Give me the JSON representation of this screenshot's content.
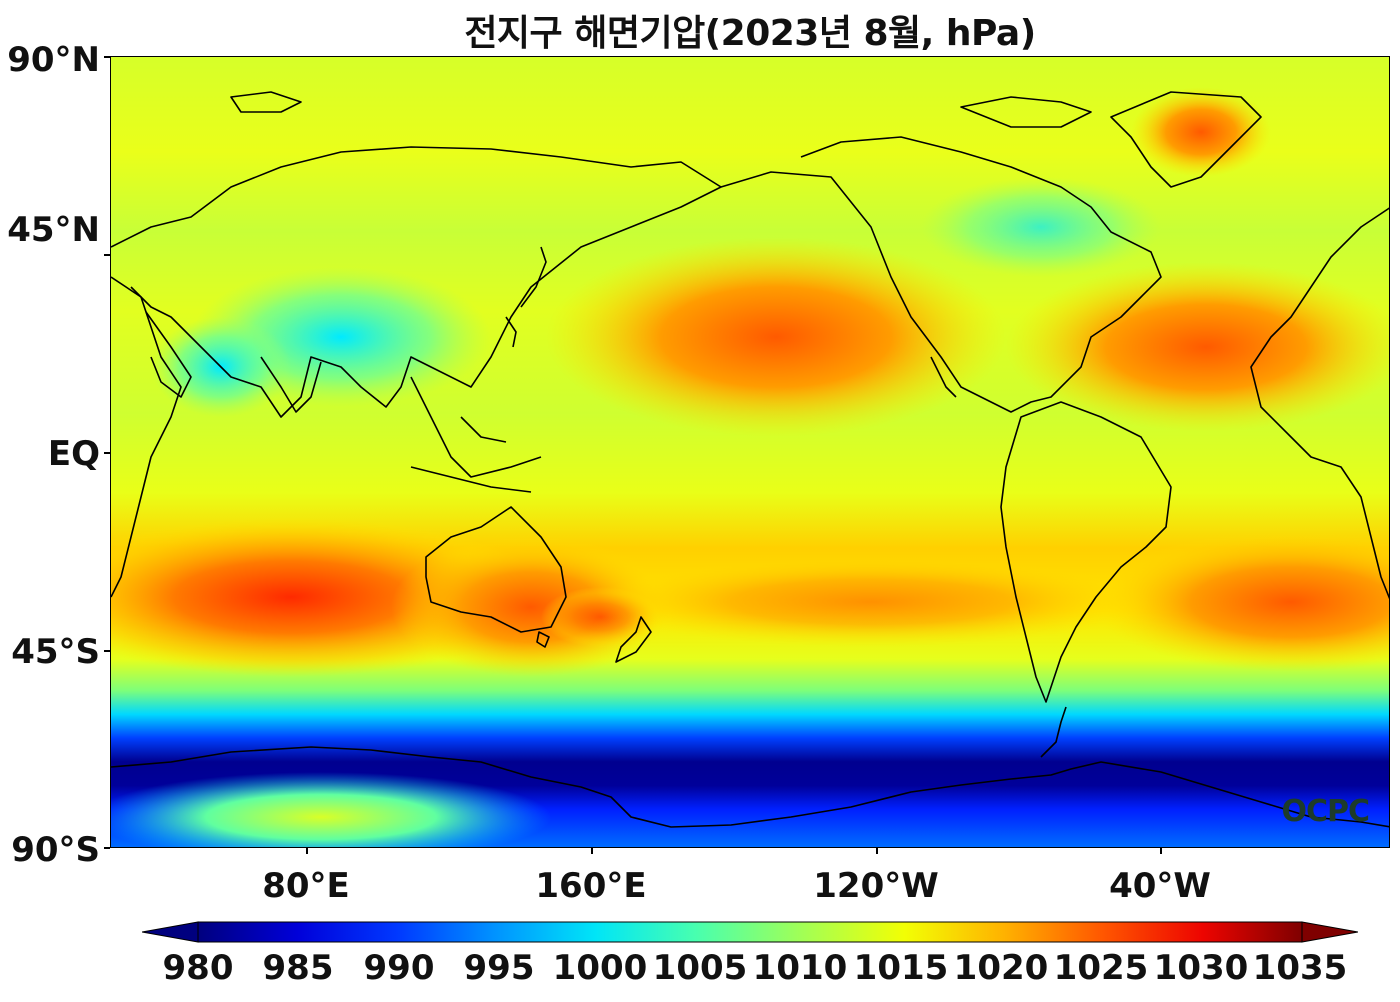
{
  "title": "전지구 해면기압(2023년 8월, hPa)",
  "y_axis_labels": [
    "90°N",
    "45°N",
    "EQ",
    "45°S",
    "90°S"
  ],
  "x_axis_labels": [
    "80°E",
    "160°E",
    "120°W",
    "40°W"
  ],
  "logo": "OCPC",
  "colorbar": {
    "labels": [
      "980",
      "985",
      "990",
      "995",
      "1000",
      "1005",
      "1010",
      "1015",
      "1020",
      "1025",
      "1030",
      "1035"
    ],
    "colors": [
      "#00007f",
      "#0000d9",
      "#0038ff",
      "#0094ff",
      "#00e5f7",
      "#47ffb0",
      "#a4ff53",
      "#f2ff04",
      "#ffb200",
      "#ff5600",
      "#ed0400",
      "#7f0000"
    ]
  },
  "colors": {
    "land_outline": "#000000",
    "ocean_low": "#00007f",
    "ocean_mid": "#aaff4d",
    "high": "#ff3c00"
  }
}
